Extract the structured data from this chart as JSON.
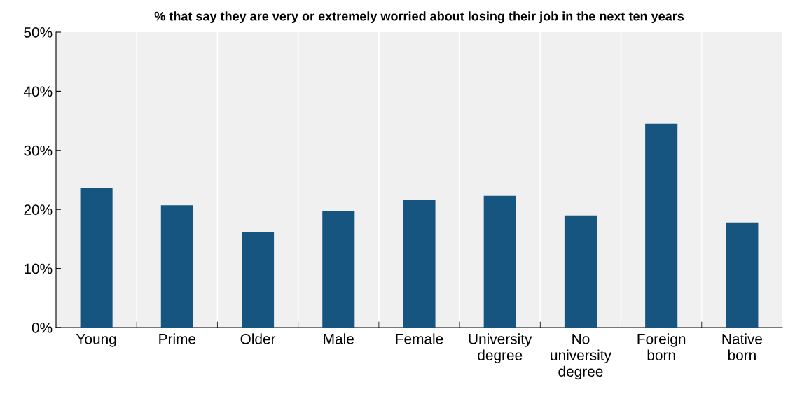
{
  "chart_data": {
    "type": "bar",
    "title": "% that say they are very or extremely worried about losing their job in the next ten years",
    "categories": [
      "Young",
      "Prime",
      "Older",
      "Male",
      "Female",
      "University\ndegree",
      "No\nuniversity\ndegree",
      "Foreign\nborn",
      "Native\nborn"
    ],
    "values": [
      23.6,
      20.7,
      16.2,
      19.8,
      21.6,
      22.3,
      19.0,
      34.5,
      17.8
    ],
    "color": "#15557f",
    "ylim": [
      0,
      50
    ],
    "yticks": [
      {
        "value": 0,
        "label": "0%"
      },
      {
        "value": 10,
        "label": "10%"
      },
      {
        "value": 20,
        "label": "20%"
      },
      {
        "value": 30,
        "label": "30%"
      },
      {
        "value": 40,
        "label": "40%"
      },
      {
        "value": 50,
        "label": "50%"
      }
    ],
    "grid": "x"
  }
}
